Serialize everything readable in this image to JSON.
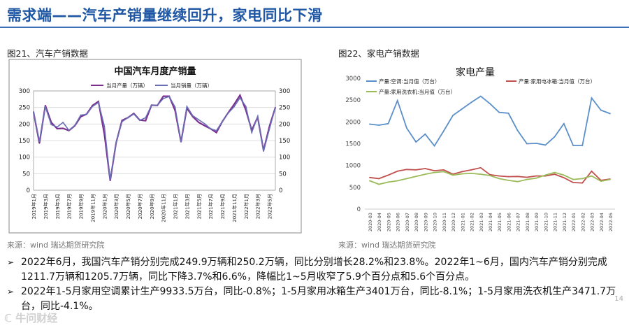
{
  "header": {
    "title": "需求端——汽车产销量继续回升，家电同比下滑"
  },
  "left": {
    "caption": "图21、汽车产销数据",
    "source": "来源：wind   瑞达期货研究院"
  },
  "right": {
    "caption": "图22、家电产销数据",
    "source": "来源：wind   瑞达期货研究院"
  },
  "bullets": [
    "2022年6月，我国汽车产销分别完成249.9万辆和250.2万辆，同比分别增长28.2%和23.8%。2022年1~6月，国内汽车产销分别完成1211.7万辆和1205.7万辆，同比下降3.7%和6.6%，降幅比1~5月收窄了5.9个百分点和5.6个百分点。",
    "2022年1-5月家用空调累计生产9933.5万台，同比-0.8%；1-5月家用冰箱生产3401万台，同比-8.1%；1-5月家用洗衣机生产3471.7万台，同比-4.1%。"
  ],
  "bullet_marker": "➢",
  "page_number": "14",
  "watermark": "ℂ 牛问财经",
  "colors": {
    "title": "#1f57a4",
    "car_prod": "#7a2f8f",
    "car_sales": "#6a6fb5",
    "ac": "#5b8fc9",
    "fridge": "#c0504d",
    "washer": "#9bbb59"
  },
  "chart_data": [
    {
      "type": "line",
      "title": "中国汽车月度产销量",
      "categories": [
        "2019年1月",
        "2019年2月",
        "2019年3月",
        "2019年4月",
        "2019年5月",
        "2019年6月",
        "2019年7月",
        "2019年8月",
        "2019年9月",
        "2019年10月",
        "2019年11月",
        "2019年12月",
        "2020年1月",
        "2020年2月",
        "2020年3月",
        "2020年4月",
        "2020年5月",
        "2020年6月",
        "2020年7月",
        "2020年8月",
        "2020年9月",
        "2020年10月",
        "2020年11月",
        "2020年12月",
        "2021年1月",
        "2021年2月",
        "2021年3月",
        "2021年4月",
        "2021年5月",
        "2021年6月",
        "2021年7月",
        "2021年8月",
        "2021年9月",
        "2021年10月",
        "2021年11月",
        "2021年12月",
        "2022年1月",
        "2022年2月",
        "2022年3月",
        "2022年4月",
        "2022年5月",
        "2022年6月"
      ],
      "tick_labels": [
        "2019年1月",
        "2019年3月",
        "2019年5月",
        "2019年7月",
        "2019年9月",
        "2019年11月",
        "2020年1月",
        "2020年3月",
        "2020年5月",
        "2020年7月",
        "2020年9月",
        "2020年11月",
        "2021年1月",
        "2021年3月",
        "2021年5月",
        "2021年7月",
        "2021年9月",
        "2021年11月",
        "2022年1月",
        "2022年3月",
        "2022年5月"
      ],
      "series": [
        {
          "name": "当月产量（万辆）",
          "values": [
            236,
            142,
            256,
            205,
            186,
            187,
            180,
            195,
            222,
            230,
            256,
            268,
            170,
            29,
            143,
            211,
            219,
            232,
            212,
            210,
            257,
            256,
            284,
            284,
            241,
            146,
            248,
            222,
            205,
            195,
            186,
            174,
            207,
            234,
            259,
            287,
            242,
            181,
            221,
            120,
            193,
            250
          ]
        },
        {
          "name": "当月销量（万辆）",
          "values": [
            237,
            148,
            252,
            198,
            191,
            205,
            181,
            196,
            227,
            229,
            253,
            265,
            194,
            31,
            144,
            207,
            219,
            230,
            211,
            219,
            257,
            257,
            277,
            283,
            251,
            146,
            253,
            225,
            213,
            201,
            186,
            180,
            207,
            233,
            252,
            279,
            253,
            174,
            223,
            118,
            186,
            250
          ]
        }
      ],
      "ylim": [
        0,
        300
      ],
      "yticks": [
        0,
        50,
        100,
        150,
        200,
        250,
        300
      ],
      "legend": "top"
    },
    {
      "type": "line",
      "title": "家电产量",
      "categories": [
        "2020-03",
        "2020-04",
        "2020-05",
        "2020-06",
        "2020-07",
        "2020-08",
        "2020-09",
        "2020-10",
        "2020-11",
        "2020-12",
        "2021-01",
        "2021-02",
        "2021-03",
        "2021-04",
        "2021-05",
        "2021-06",
        "2021-07",
        "2021-08",
        "2021-09",
        "2021-10",
        "2021-11",
        "2021-12",
        "2022-01",
        "2022-02",
        "2022-03",
        "2022-04",
        "2022-05"
      ],
      "series": [
        {
          "name": "产量:空调:当月值（万台）",
          "values": [
            1950,
            1925,
            1960,
            2490,
            1860,
            1540,
            1720,
            1450,
            1790,
            2150,
            2300,
            2450,
            2590,
            2420,
            2220,
            2200,
            1800,
            1500,
            1510,
            1470,
            1660,
            1960,
            1460,
            1460,
            2550,
            2270,
            2190
          ]
        },
        {
          "name": "产量:家用电冰箱:当月值（万台）",
          "values": [
            725,
            700,
            780,
            870,
            910,
            900,
            930,
            880,
            900,
            800,
            860,
            900,
            950,
            790,
            760,
            745,
            750,
            730,
            760,
            760,
            800,
            720,
            610,
            600,
            870,
            660,
            690
          ]
        },
        {
          "name": "产量:家用洗衣机:当月值（万台）",
          "values": [
            650,
            570,
            620,
            650,
            700,
            750,
            800,
            840,
            860,
            780,
            810,
            820,
            800,
            770,
            700,
            660,
            630,
            680,
            710,
            780,
            840,
            780,
            680,
            700,
            760,
            640,
            680
          ]
        }
      ],
      "ylim": [
        0,
        3000
      ],
      "yticks": [
        0,
        500,
        1000,
        1500,
        2000,
        2500,
        3000
      ],
      "legend": "top"
    }
  ]
}
